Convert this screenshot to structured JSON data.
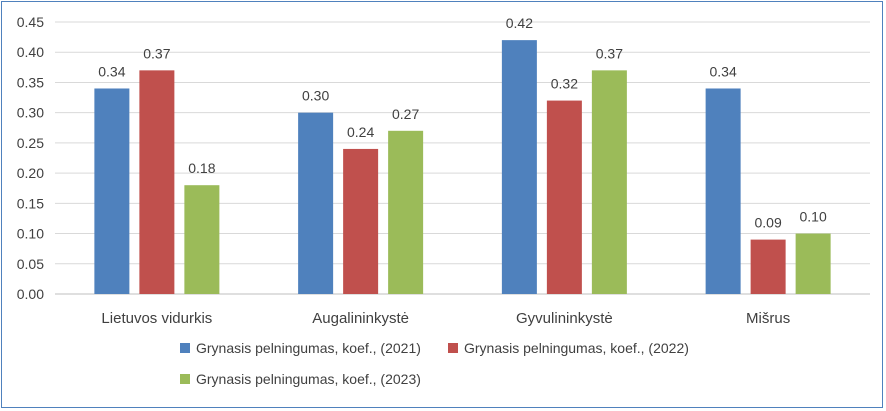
{
  "chart_data": {
    "type": "bar",
    "categories": [
      "Lietuvos vidurkis",
      "Augalininkystė",
      "Gyvulininkystė",
      "Mišrus"
    ],
    "series": [
      {
        "name": "Grynasis pelningumas, koef., (2021)",
        "values": [
          0.34,
          0.3,
          0.42,
          0.34
        ],
        "labels": [
          "0.34",
          "0.30",
          "0.42",
          "0.34"
        ],
        "color": "#4f81bd"
      },
      {
        "name": "Grynasis pelningumas, koef., (2022)",
        "values": [
          0.37,
          0.24,
          0.32,
          0.09
        ],
        "labels": [
          "0.37",
          "0.24",
          "0.32",
          "0.09"
        ],
        "color": "#c0504d"
      },
      {
        "name": "Grynasis pelningumas, koef., (2023)",
        "values": [
          0.18,
          0.27,
          0.37,
          0.1
        ],
        "labels": [
          "0.18",
          "0.27",
          "0.37",
          "0.10"
        ],
        "color": "#9bbb59"
      }
    ],
    "ylim": [
      0,
      0.45
    ],
    "yticks": [
      "0.00",
      "0.05",
      "0.10",
      "0.15",
      "0.20",
      "0.25",
      "0.30",
      "0.35",
      "0.40",
      "0.45"
    ],
    "grid": true,
    "legend_position": "bottom"
  }
}
